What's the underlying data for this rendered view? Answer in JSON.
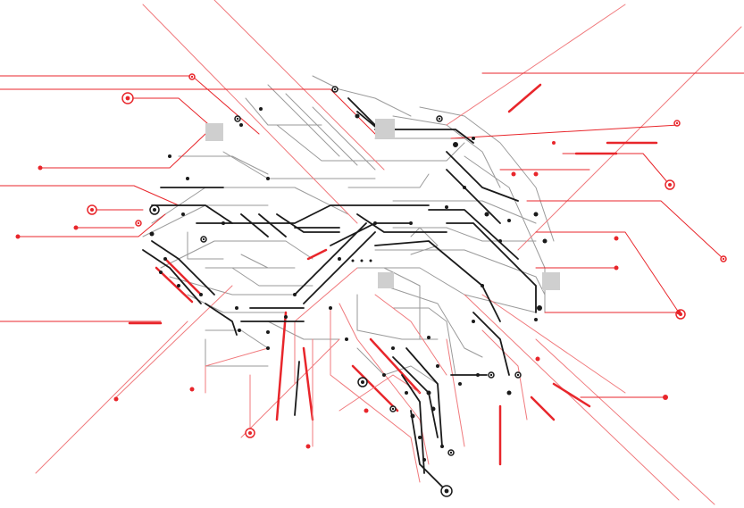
{
  "image": {
    "kind": "illustration",
    "subject": "circuit-board-traces",
    "colors": {
      "background": "#ffffff",
      "red": "#e8262b",
      "light_red": "#f07a7d",
      "black": "#1a1a1a",
      "gray": "#9a9a9a",
      "chip_gray": "#cfcfcf"
    }
  }
}
